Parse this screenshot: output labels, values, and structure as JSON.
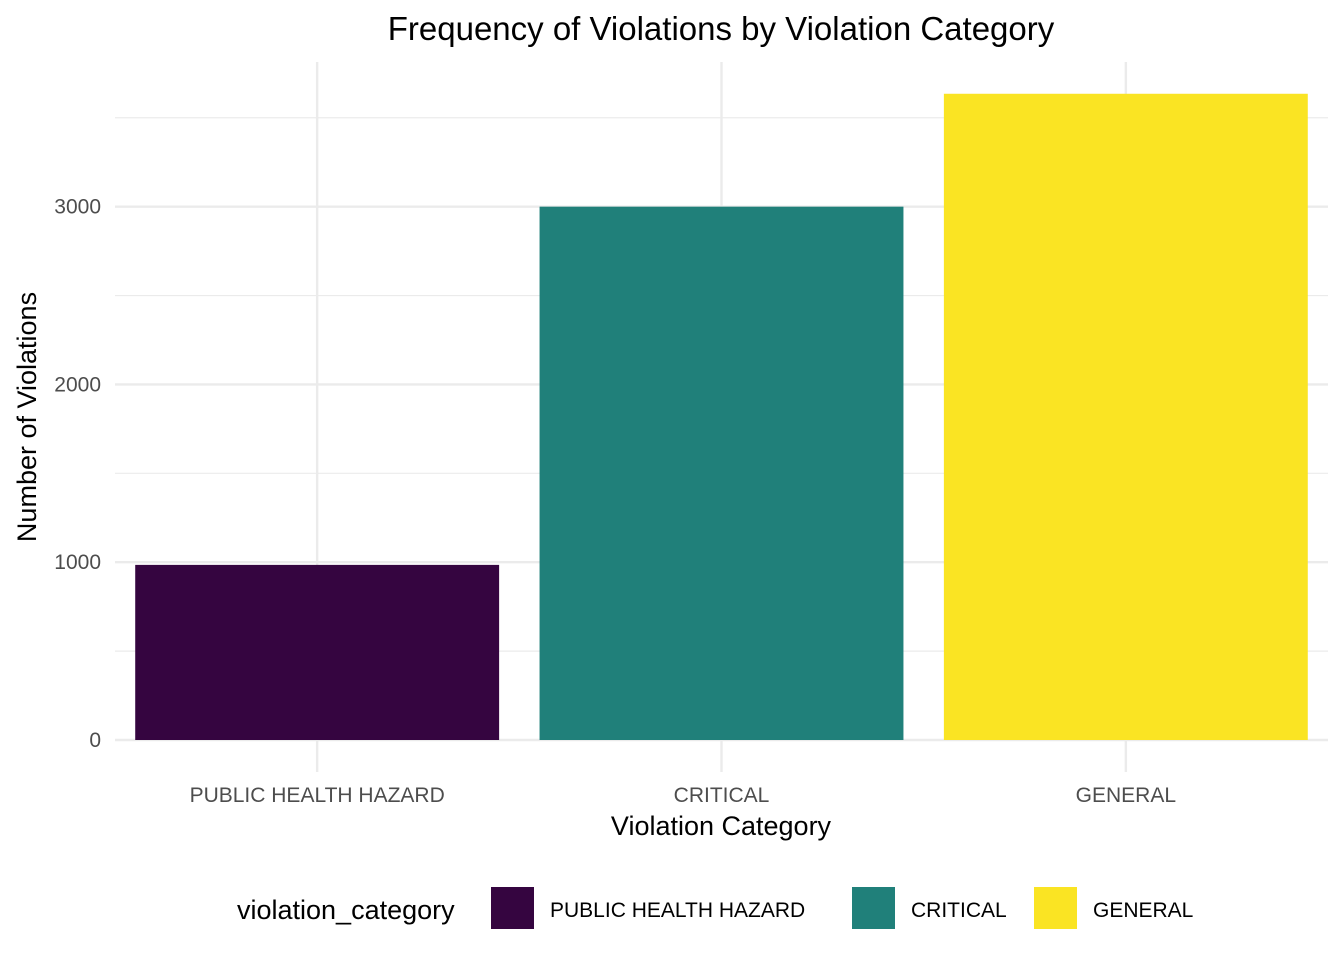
{
  "chart_data": {
    "type": "bar",
    "title": "Frequency of Violations by Violation Category",
    "xlabel": "Violation Category",
    "ylabel": "Number of Violations",
    "categories": [
      "PUBLIC HEALTH HAZARD",
      "CRITICAL",
      "GENERAL"
    ],
    "values": [
      985,
      3000,
      3635
    ],
    "colors": [
      "#350540",
      "#20807A",
      "#FAE423"
    ],
    "ylim": [
      0,
      3635
    ],
    "yticks": [
      0,
      1000,
      2000,
      3000
    ],
    "grid": true,
    "legend": {
      "title": "violation_category",
      "position": "bottom",
      "entries": [
        "PUBLIC HEALTH HAZARD",
        "CRITICAL",
        "GENERAL"
      ]
    }
  }
}
